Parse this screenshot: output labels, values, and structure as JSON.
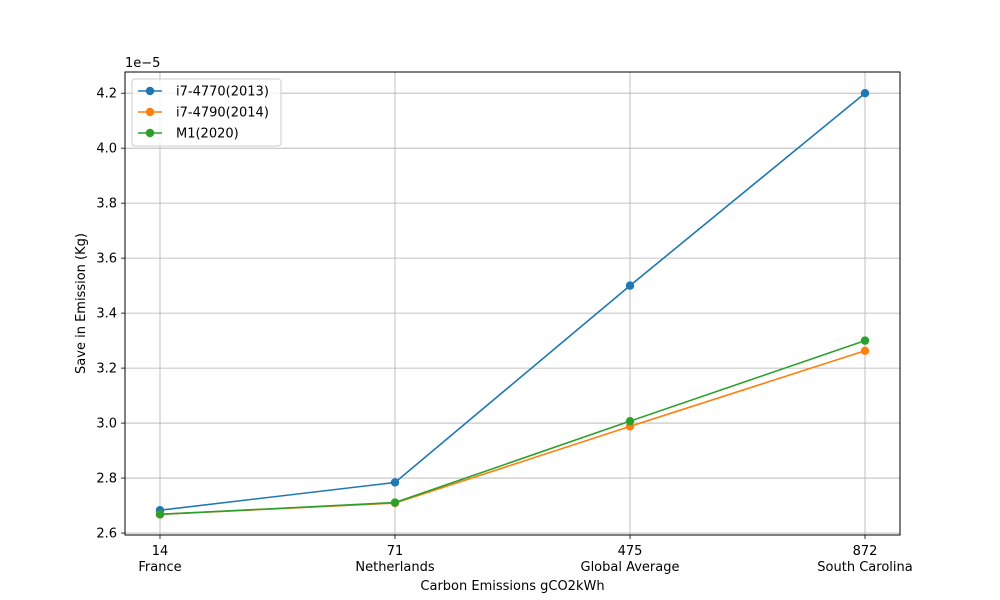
{
  "chart_data": {
    "type": "line",
    "title": "",
    "xlabel": "Carbon Emissions gCO2kWh",
    "ylabel": "Save in Emission (Kg)",
    "y_scale_label": "1e−5",
    "x_ticks": [
      {
        "value": "14",
        "name": "France"
      },
      {
        "value": "71",
        "name": "Netherlands"
      },
      {
        "value": "475",
        "name": "Global Average"
      },
      {
        "value": "872",
        "name": "South Carolina"
      }
    ],
    "y_ticks": [
      "2.6",
      "2.8",
      "3.0",
      "3.2",
      "3.4",
      "3.6",
      "3.8",
      "4.0",
      "4.2"
    ],
    "ylim": [
      2.5929,
      4.2771
    ],
    "grid": true,
    "legend_position": "top-left",
    "series": [
      {
        "name": "i7-4770(2013)",
        "color": "#1f77b4",
        "values": [
          2.683,
          2.784,
          3.5,
          4.2
        ]
      },
      {
        "name": "i7-4790(2014)",
        "color": "#ff7f0e",
        "values": [
          2.668,
          2.709,
          2.988,
          3.263
        ]
      },
      {
        "name": "M1(2020)",
        "color": "#2ca02c",
        "values": [
          2.668,
          2.711,
          3.007,
          3.3
        ]
      }
    ]
  }
}
